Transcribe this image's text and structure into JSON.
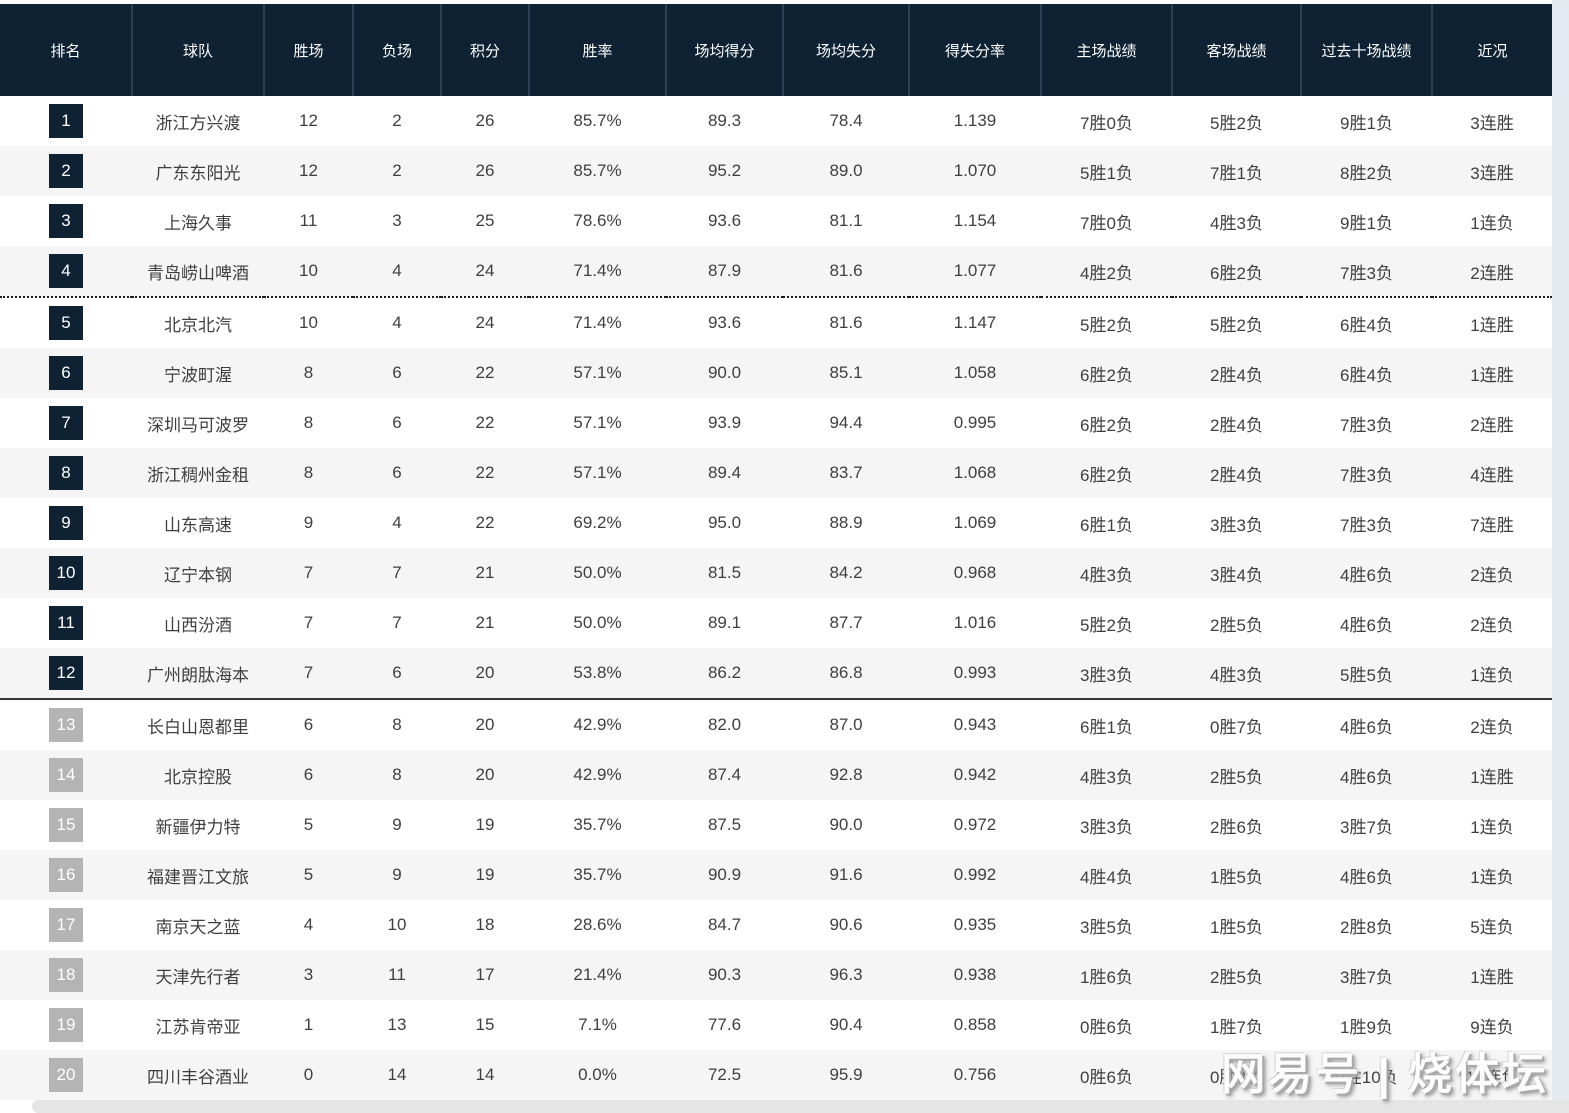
{
  "watermark": {
    "text": "网易号 | 烧体坛"
  },
  "colors": {
    "header_bg": "#0e2234",
    "header_divider": "#2a4158",
    "badge_dark": "#0e2234",
    "badge_gray": "#b4b4b4",
    "row_alt": "#f5f5f6",
    "text": "#3f3f3f"
  },
  "chart_data": {
    "type": "table",
    "title": "",
    "columns": [
      "排名",
      "球队",
      "胜场",
      "负场",
      "积分",
      "胜率",
      "场均得分",
      "场均失分",
      "得失分率",
      "主场战绩",
      "客场战绩",
      "过去十场战绩",
      "近况"
    ],
    "separators": {
      "dotted_after_row": 4,
      "solid_after_row": 12
    },
    "badge_dark_max_rank": 12,
    "rows": [
      [
        "1",
        "浙江方兴渡",
        "12",
        "2",
        "26",
        "85.7%",
        "89.3",
        "78.4",
        "1.139",
        "7胜0负",
        "5胜2负",
        "9胜1负",
        "3连胜"
      ],
      [
        "2",
        "广东东阳光",
        "12",
        "2",
        "26",
        "85.7%",
        "95.2",
        "89.0",
        "1.070",
        "5胜1负",
        "7胜1负",
        "8胜2负",
        "3连胜"
      ],
      [
        "3",
        "上海久事",
        "11",
        "3",
        "25",
        "78.6%",
        "93.6",
        "81.1",
        "1.154",
        "7胜0负",
        "4胜3负",
        "9胜1负",
        "1连负"
      ],
      [
        "4",
        "青岛崂山啤酒",
        "10",
        "4",
        "24",
        "71.4%",
        "87.9",
        "81.6",
        "1.077",
        "4胜2负",
        "6胜2负",
        "7胜3负",
        "2连胜"
      ],
      [
        "5",
        "北京北汽",
        "10",
        "4",
        "24",
        "71.4%",
        "93.6",
        "81.6",
        "1.147",
        "5胜2负",
        "5胜2负",
        "6胜4负",
        "1连胜"
      ],
      [
        "6",
        "宁波町渥",
        "8",
        "6",
        "22",
        "57.1%",
        "90.0",
        "85.1",
        "1.058",
        "6胜2负",
        "2胜4负",
        "6胜4负",
        "1连胜"
      ],
      [
        "7",
        "深圳马可波罗",
        "8",
        "6",
        "22",
        "57.1%",
        "93.9",
        "94.4",
        "0.995",
        "6胜2负",
        "2胜4负",
        "7胜3负",
        "2连胜"
      ],
      [
        "8",
        "浙江稠州金租",
        "8",
        "6",
        "22",
        "57.1%",
        "89.4",
        "83.7",
        "1.068",
        "6胜2负",
        "2胜4负",
        "7胜3负",
        "4连胜"
      ],
      [
        "9",
        "山东高速",
        "9",
        "4",
        "22",
        "69.2%",
        "95.0",
        "88.9",
        "1.069",
        "6胜1负",
        "3胜3负",
        "7胜3负",
        "7连胜"
      ],
      [
        "10",
        "辽宁本钢",
        "7",
        "7",
        "21",
        "50.0%",
        "81.5",
        "84.2",
        "0.968",
        "4胜3负",
        "3胜4负",
        "4胜6负",
        "2连负"
      ],
      [
        "11",
        "山西汾酒",
        "7",
        "7",
        "21",
        "50.0%",
        "89.1",
        "87.7",
        "1.016",
        "5胜2负",
        "2胜5负",
        "4胜6负",
        "2连负"
      ],
      [
        "12",
        "广州朗肽海本",
        "7",
        "6",
        "20",
        "53.8%",
        "86.2",
        "86.8",
        "0.993",
        "3胜3负",
        "4胜3负",
        "5胜5负",
        "1连负"
      ],
      [
        "13",
        "长白山恩都里",
        "6",
        "8",
        "20",
        "42.9%",
        "82.0",
        "87.0",
        "0.943",
        "6胜1负",
        "0胜7负",
        "4胜6负",
        "2连负"
      ],
      [
        "14",
        "北京控股",
        "6",
        "8",
        "20",
        "42.9%",
        "87.4",
        "92.8",
        "0.942",
        "4胜3负",
        "2胜5负",
        "4胜6负",
        "1连胜"
      ],
      [
        "15",
        "新疆伊力特",
        "5",
        "9",
        "19",
        "35.7%",
        "87.5",
        "90.0",
        "0.972",
        "3胜3负",
        "2胜6负",
        "3胜7负",
        "1连负"
      ],
      [
        "16",
        "福建晋江文旅",
        "5",
        "9",
        "19",
        "35.7%",
        "90.9",
        "91.6",
        "0.992",
        "4胜4负",
        "1胜5负",
        "4胜6负",
        "1连负"
      ],
      [
        "17",
        "南京天之蓝",
        "4",
        "10",
        "18",
        "28.6%",
        "84.7",
        "90.6",
        "0.935",
        "3胜5负",
        "1胜5负",
        "2胜8负",
        "5连负"
      ],
      [
        "18",
        "天津先行者",
        "3",
        "11",
        "17",
        "21.4%",
        "90.3",
        "96.3",
        "0.938",
        "1胜6负",
        "2胜5负",
        "3胜7负",
        "1连胜"
      ],
      [
        "19",
        "江苏肯帝亚",
        "1",
        "13",
        "15",
        "7.1%",
        "77.6",
        "90.4",
        "0.858",
        "0胜6负",
        "1胜7负",
        "1胜9负",
        "9连负"
      ],
      [
        "20",
        "四川丰谷酒业",
        "0",
        "14",
        "14",
        "0.0%",
        "72.5",
        "95.9",
        "0.756",
        "0胜6负",
        "0胜8负",
        "0胜10负",
        "14连负"
      ]
    ]
  }
}
